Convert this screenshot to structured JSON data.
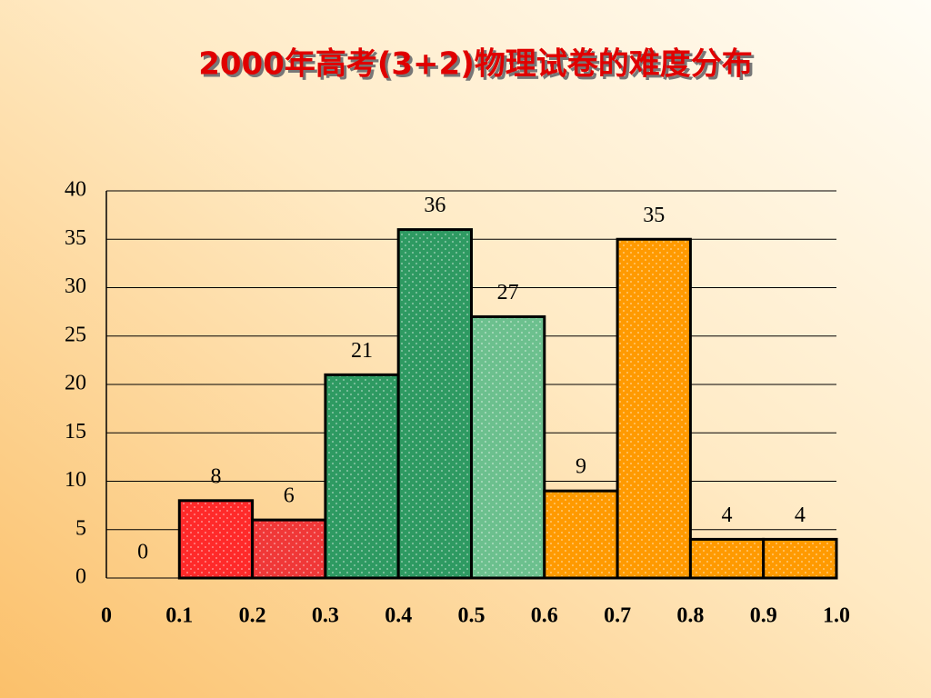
{
  "chart_data": {
    "type": "histogram",
    "title": "2000年高考(3+2)物理试卷的难度分布",
    "bins": [
      0,
      0.1,
      0.2,
      0.3,
      0.4,
      0.5,
      0.6,
      0.7,
      0.8,
      0.9,
      1
    ],
    "values": [
      0,
      8,
      6,
      21,
      36,
      27,
      9,
      35,
      4,
      4
    ],
    "colors": [
      "#ff2a2a",
      "#ff2a2a",
      "#f03838",
      "#2e9a62",
      "#2e9a62",
      "#6cc08e",
      "#ff9a00",
      "#ff9a00",
      "#ff9a00",
      "#ff9a00"
    ],
    "xlim": [
      0,
      1
    ],
    "xticks": [
      0,
      0.1,
      0.2,
      0.3,
      0.4,
      0.5,
      0.6,
      0.7,
      0.8,
      0.9,
      {
        "value": 1,
        "label": "1.0"
      }
    ],
    "ylim": [
      0,
      40
    ],
    "yticks": [
      0,
      5,
      10,
      15,
      20,
      25,
      30,
      35,
      40
    ],
    "grid": true
  }
}
